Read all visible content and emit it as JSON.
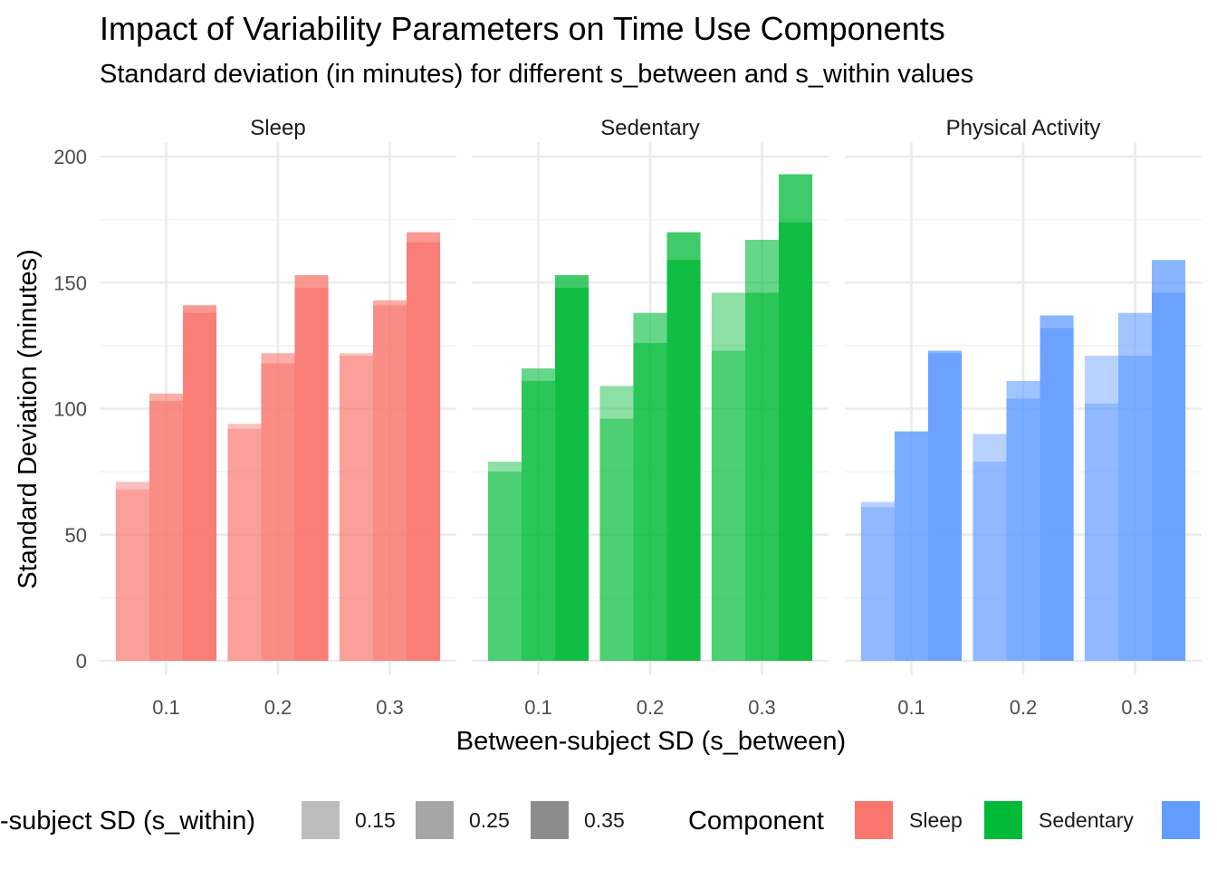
{
  "chart_data": {
    "type": "bar",
    "title": "Impact of Variability Parameters on Time Use Components",
    "subtitle": "Standard deviation (in minutes) for different s_between and s_within values",
    "xlabel": "Between-subject SD (s_between)",
    "ylabel": "Standard Deviation (minutes)",
    "ylim": [
      0,
      200
    ],
    "y_ticks": [
      "0",
      "50",
      "100",
      "150",
      "200"
    ],
    "grid": true,
    "facets": [
      "Sleep",
      "Sedentary",
      "Physical Activity"
    ],
    "categories": [
      "0.1",
      "0.2",
      "0.3"
    ],
    "s_within_levels": [
      "0.15",
      "0.25",
      "0.35"
    ],
    "bar_offsets": [
      -0.3,
      0.0,
      0.3
    ],
    "panels": [
      {
        "component": "Sleep",
        "bars": [
          {
            "category": "0.1",
            "s_within": "0.15",
            "values": [
              71,
              68
            ]
          },
          {
            "category": "0.1",
            "s_within": "0.25",
            "values": [
              106,
              103
            ]
          },
          {
            "category": "0.1",
            "s_within": "0.35",
            "values": [
              141,
              138
            ]
          },
          {
            "category": "0.2",
            "s_within": "0.15",
            "values": [
              94,
              92
            ]
          },
          {
            "category": "0.2",
            "s_within": "0.25",
            "values": [
              122,
              118
            ]
          },
          {
            "category": "0.2",
            "s_within": "0.35",
            "values": [
              153,
              148
            ]
          },
          {
            "category": "0.3",
            "s_within": "0.15",
            "values": [
              122,
              121
            ]
          },
          {
            "category": "0.3",
            "s_within": "0.25",
            "values": [
              143,
              141
            ]
          },
          {
            "category": "0.3",
            "s_within": "0.35",
            "values": [
              170,
              166
            ]
          }
        ]
      },
      {
        "component": "Sedentary",
        "bars": [
          {
            "category": "0.1",
            "s_within": "0.15",
            "values": [
              79,
              75
            ]
          },
          {
            "category": "0.1",
            "s_within": "0.25",
            "values": [
              116,
              111
            ]
          },
          {
            "category": "0.1",
            "s_within": "0.35",
            "values": [
              153,
              148
            ]
          },
          {
            "category": "0.2",
            "s_within": "0.15",
            "values": [
              109,
              96
            ]
          },
          {
            "category": "0.2",
            "s_within": "0.25",
            "values": [
              138,
              126
            ]
          },
          {
            "category": "0.2",
            "s_within": "0.35",
            "values": [
              170,
              159
            ]
          },
          {
            "category": "0.3",
            "s_within": "0.15",
            "values": [
              146,
              123
            ]
          },
          {
            "category": "0.3",
            "s_within": "0.25",
            "values": [
              167,
              146
            ]
          },
          {
            "category": "0.3",
            "s_within": "0.35",
            "values": [
              193,
              174
            ]
          }
        ]
      },
      {
        "component": "Physical Activity",
        "bars": [
          {
            "category": "0.1",
            "s_within": "0.15",
            "values": [
              63,
              61
            ]
          },
          {
            "category": "0.1",
            "s_within": "0.25",
            "values": [
              91,
              91
            ]
          },
          {
            "category": "0.1",
            "s_within": "0.35",
            "values": [
              123,
              122
            ]
          },
          {
            "category": "0.2",
            "s_within": "0.15",
            "values": [
              90,
              79
            ]
          },
          {
            "category": "0.2",
            "s_within": "0.25",
            "values": [
              111,
              104
            ]
          },
          {
            "category": "0.2",
            "s_within": "0.35",
            "values": [
              137,
              132
            ]
          },
          {
            "category": "0.3",
            "s_within": "0.15",
            "values": [
              121,
              102
            ]
          },
          {
            "category": "0.3",
            "s_within": "0.25",
            "values": [
              138,
              121
            ]
          },
          {
            "category": "0.3",
            "s_within": "0.35",
            "values": [
              159,
              146
            ]
          }
        ]
      }
    ],
    "colors": {
      "Sleep": "#F8766D",
      "Sedentary": "#00BA38",
      "Physical Activity": "#619CFF",
      "grid_major": "#EBEBEB",
      "grid_minor": "#F3F3F3"
    },
    "alpha_by_s_within": {
      "0.15": 0.45,
      "0.25": 0.6,
      "0.35": 0.75
    },
    "legend": {
      "placement": "bottom",
      "alpha_title": "-subject SD (s_within)",
      "alpha_items": [
        {
          "label": "0.15",
          "swatch": "#BDBDBD"
        },
        {
          "label": "0.25",
          "swatch": "#A6A6A6"
        },
        {
          "label": "0.35",
          "swatch": "#8C8C8C"
        }
      ],
      "fill_title": "Component",
      "fill_items": [
        {
          "label": "Sleep",
          "color": "#F8766D"
        },
        {
          "label": "Sedentary",
          "color": "#00BA38"
        },
        {
          "label": "Physical Activity",
          "color": "#619CFF"
        }
      ]
    }
  }
}
